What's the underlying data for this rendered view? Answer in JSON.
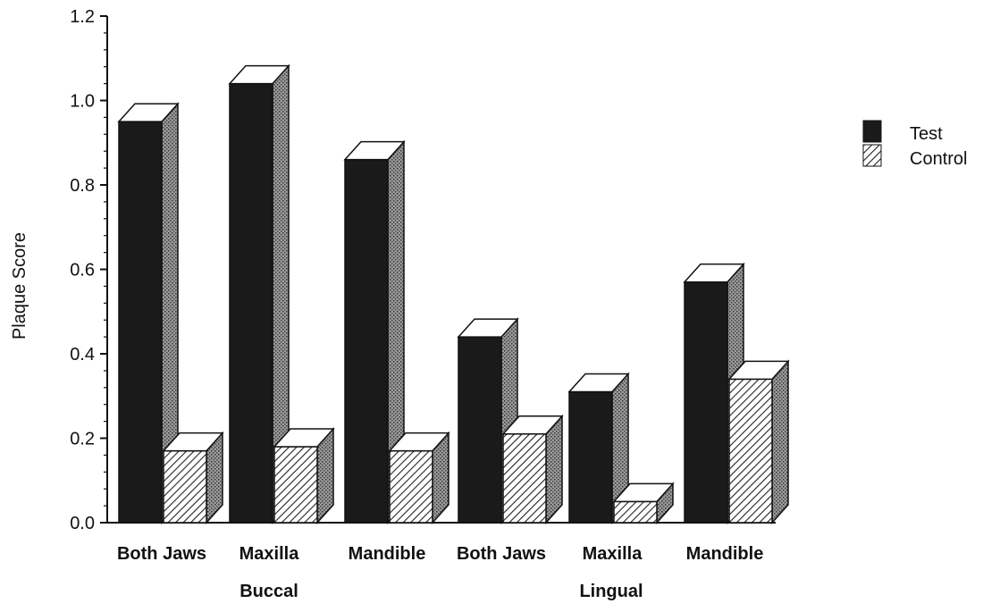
{
  "chart_data": {
    "type": "bar",
    "title": "",
    "xlabel": "",
    "ylabel": "Plaque Score",
    "ylim": [
      0,
      1.2
    ],
    "yticks": [
      "0.0",
      "0.2",
      "0.4",
      "0.6",
      "0.8",
      "1.0",
      "1.2"
    ],
    "grid": false,
    "legend_position": "right",
    "three_d": true,
    "categories": [
      "Both Jaws",
      "Maxilla",
      "Mandible",
      "Both Jaws",
      "Maxilla",
      "Mandible"
    ],
    "groups": [
      {
        "label": "Buccal",
        "categories": [
          "Both Jaws",
          "Maxilla",
          "Mandible"
        ]
      },
      {
        "label": "Lingual",
        "categories": [
          "Both Jaws",
          "Maxilla",
          "Mandible"
        ]
      }
    ],
    "series": [
      {
        "name": "Test",
        "values": [
          0.95,
          1.04,
          0.86,
          0.44,
          0.31,
          0.57
        ]
      },
      {
        "name": "Control",
        "values": [
          0.17,
          0.18,
          0.17,
          0.21,
          0.05,
          0.34
        ]
      }
    ]
  },
  "colors": {
    "test_fill": "#1a1a1a",
    "control_fill": "#ffffff",
    "axis": "#111111",
    "hatch": "#222222",
    "side_shade": "#8f8f8f"
  }
}
